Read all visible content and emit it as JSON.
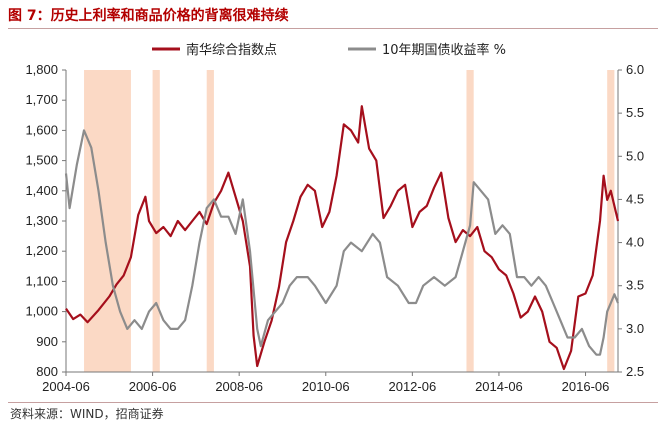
{
  "figure": {
    "title": "图 7：历史上利率和商品价格的背离很难持续",
    "source": "资料来源：WIND，招商证券"
  },
  "colors": {
    "series1": "#a50f1c",
    "series2": "#8c8c8c",
    "shade": "#fbd9c5",
    "title": "#b30000"
  },
  "chart_data": {
    "type": "line",
    "x_ticks": [
      "2004-06",
      "2006-06",
      "2008-06",
      "2010-06",
      "2012-06",
      "2014-06",
      "2016-06"
    ],
    "x_range": [
      "2004-06",
      "2017-03"
    ],
    "y_left": {
      "ticks": [
        "800",
        "900",
        "1,000",
        "1,100",
        "1,200",
        "1,300",
        "1,400",
        "1,500",
        "1,600",
        "1,700",
        "1,800"
      ],
      "range": [
        800,
        1800
      ]
    },
    "y_right": {
      "ticks": [
        "2.5",
        "3.0",
        "3.5",
        "4.0",
        "4.5",
        "5.0",
        "5.5",
        "6.0"
      ],
      "range": [
        2.5,
        6.0
      ]
    },
    "grid": false,
    "legend_position": "top",
    "shaded_periods": [
      [
        "2004-11",
        "2005-12"
      ],
      [
        "2006-06",
        "2006-08"
      ],
      [
        "2007-09",
        "2007-11"
      ],
      [
        "2013-09",
        "2013-11"
      ],
      [
        "2016-12",
        "2017-02"
      ]
    ],
    "series": [
      {
        "name": "南华综合指数点",
        "axis": "left",
        "points": [
          [
            "2004-06",
            1010
          ],
          [
            "2004-08",
            975
          ],
          [
            "2004-10",
            990
          ],
          [
            "2004-12",
            965
          ],
          [
            "2005-03",
            1005
          ],
          [
            "2005-06",
            1050
          ],
          [
            "2005-08",
            1090
          ],
          [
            "2005-10",
            1120
          ],
          [
            "2005-12",
            1180
          ],
          [
            "2006-02",
            1320
          ],
          [
            "2006-04",
            1380
          ],
          [
            "2006-05",
            1300
          ],
          [
            "2006-07",
            1260
          ],
          [
            "2006-09",
            1280
          ],
          [
            "2006-11",
            1250
          ],
          [
            "2007-01",
            1300
          ],
          [
            "2007-03",
            1270
          ],
          [
            "2007-05",
            1300
          ],
          [
            "2007-07",
            1330
          ],
          [
            "2007-09",
            1290
          ],
          [
            "2007-11",
            1360
          ],
          [
            "2008-01",
            1400
          ],
          [
            "2008-03",
            1460
          ],
          [
            "2008-05",
            1380
          ],
          [
            "2008-07",
            1300
          ],
          [
            "2008-09",
            1150
          ],
          [
            "2008-10",
            920
          ],
          [
            "2008-11",
            820
          ],
          [
            "2009-01",
            900
          ],
          [
            "2009-03",
            970
          ],
          [
            "2009-05",
            1080
          ],
          [
            "2009-07",
            1230
          ],
          [
            "2009-09",
            1300
          ],
          [
            "2009-11",
            1380
          ],
          [
            "2010-01",
            1420
          ],
          [
            "2010-03",
            1400
          ],
          [
            "2010-05",
            1280
          ],
          [
            "2010-07",
            1330
          ],
          [
            "2010-09",
            1450
          ],
          [
            "2010-11",
            1620
          ],
          [
            "2011-01",
            1600
          ],
          [
            "2011-03",
            1560
          ],
          [
            "2011-04",
            1680
          ],
          [
            "2011-06",
            1540
          ],
          [
            "2011-08",
            1500
          ],
          [
            "2011-10",
            1310
          ],
          [
            "2011-12",
            1350
          ],
          [
            "2012-02",
            1400
          ],
          [
            "2012-04",
            1420
          ],
          [
            "2012-06",
            1280
          ],
          [
            "2012-08",
            1330
          ],
          [
            "2012-10",
            1350
          ],
          [
            "2012-12",
            1410
          ],
          [
            "2013-02",
            1460
          ],
          [
            "2013-04",
            1310
          ],
          [
            "2013-06",
            1230
          ],
          [
            "2013-08",
            1270
          ],
          [
            "2013-10",
            1250
          ],
          [
            "2013-12",
            1280
          ],
          [
            "2014-02",
            1200
          ],
          [
            "2014-04",
            1180
          ],
          [
            "2014-06",
            1140
          ],
          [
            "2014-08",
            1120
          ],
          [
            "2014-10",
            1060
          ],
          [
            "2014-12",
            980
          ],
          [
            "2015-02",
            1000
          ],
          [
            "2015-04",
            1050
          ],
          [
            "2015-06",
            1000
          ],
          [
            "2015-08",
            900
          ],
          [
            "2015-10",
            880
          ],
          [
            "2015-12",
            810
          ],
          [
            "2016-02",
            870
          ],
          [
            "2016-04",
            1050
          ],
          [
            "2016-06",
            1060
          ],
          [
            "2016-08",
            1120
          ],
          [
            "2016-10",
            1300
          ],
          [
            "2016-11",
            1450
          ],
          [
            "2016-12",
            1370
          ],
          [
            "2017-01",
            1400
          ],
          [
            "2017-03",
            1300
          ]
        ]
      },
      {
        "name": "10年期国债收益率 %",
        "axis": "right",
        "points": [
          [
            "2004-06",
            4.8
          ],
          [
            "2004-07",
            4.4
          ],
          [
            "2004-09",
            4.9
          ],
          [
            "2004-11",
            5.3
          ],
          [
            "2005-01",
            5.1
          ],
          [
            "2005-03",
            4.6
          ],
          [
            "2005-05",
            4.0
          ],
          [
            "2005-07",
            3.5
          ],
          [
            "2005-09",
            3.2
          ],
          [
            "2005-11",
            3.0
          ],
          [
            "2006-01",
            3.1
          ],
          [
            "2006-03",
            3.0
          ],
          [
            "2006-05",
            3.2
          ],
          [
            "2006-07",
            3.3
          ],
          [
            "2006-09",
            3.1
          ],
          [
            "2006-11",
            3.0
          ],
          [
            "2007-01",
            3.0
          ],
          [
            "2007-03",
            3.1
          ],
          [
            "2007-05",
            3.5
          ],
          [
            "2007-07",
            4.0
          ],
          [
            "2007-09",
            4.4
          ],
          [
            "2007-11",
            4.5
          ],
          [
            "2008-01",
            4.3
          ],
          [
            "2008-03",
            4.3
          ],
          [
            "2008-05",
            4.1
          ],
          [
            "2008-07",
            4.5
          ],
          [
            "2008-09",
            3.9
          ],
          [
            "2008-11",
            3.0
          ],
          [
            "2008-12",
            2.8
          ],
          [
            "2009-02",
            3.1
          ],
          [
            "2009-04",
            3.2
          ],
          [
            "2009-06",
            3.3
          ],
          [
            "2009-08",
            3.5
          ],
          [
            "2009-10",
            3.6
          ],
          [
            "2010-01",
            3.6
          ],
          [
            "2010-03",
            3.5
          ],
          [
            "2010-06",
            3.3
          ],
          [
            "2010-09",
            3.5
          ],
          [
            "2010-11",
            3.9
          ],
          [
            "2011-01",
            4.0
          ],
          [
            "2011-04",
            3.9
          ],
          [
            "2011-07",
            4.1
          ],
          [
            "2011-09",
            4.0
          ],
          [
            "2011-11",
            3.6
          ],
          [
            "2012-02",
            3.5
          ],
          [
            "2012-05",
            3.3
          ],
          [
            "2012-07",
            3.3
          ],
          [
            "2012-09",
            3.5
          ],
          [
            "2012-12",
            3.6
          ],
          [
            "2013-03",
            3.5
          ],
          [
            "2013-06",
            3.6
          ],
          [
            "2013-08",
            3.9
          ],
          [
            "2013-10",
            4.2
          ],
          [
            "2013-11",
            4.7
          ],
          [
            "2014-01",
            4.6
          ],
          [
            "2014-03",
            4.5
          ],
          [
            "2014-05",
            4.1
          ],
          [
            "2014-07",
            4.2
          ],
          [
            "2014-09",
            4.1
          ],
          [
            "2014-11",
            3.6
          ],
          [
            "2015-01",
            3.6
          ],
          [
            "2015-03",
            3.5
          ],
          [
            "2015-05",
            3.6
          ],
          [
            "2015-07",
            3.5
          ],
          [
            "2015-09",
            3.3
          ],
          [
            "2015-11",
            3.1
          ],
          [
            "2016-01",
            2.9
          ],
          [
            "2016-03",
            2.9
          ],
          [
            "2016-05",
            3.0
          ],
          [
            "2016-07",
            2.8
          ],
          [
            "2016-09",
            2.7
          ],
          [
            "2016-10",
            2.7
          ],
          [
            "2016-11",
            2.9
          ],
          [
            "2016-12",
            3.2
          ],
          [
            "2017-01",
            3.3
          ],
          [
            "2017-02",
            3.4
          ],
          [
            "2017-03",
            3.3
          ]
        ]
      }
    ]
  }
}
